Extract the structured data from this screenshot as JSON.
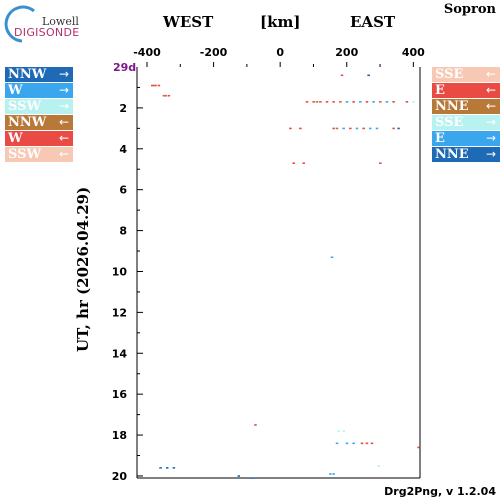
{
  "header": {
    "logo_top": "Lowell",
    "logo_bottom": "DIGISONDE",
    "station": "Sopron",
    "west_label": "WEST",
    "unit_label": "[km]",
    "east_label": "EAST",
    "day_label": "29d"
  },
  "footer": {
    "version": "Drg2Png, v 1.2.04"
  },
  "legend": {
    "left": [
      {
        "dir": "NNW",
        "arrow": "→",
        "color": "#1e6ab4"
      },
      {
        "dir": "W",
        "arrow": "→",
        "color": "#3aa6ee"
      },
      {
        "dir": "SSW",
        "arrow": "→",
        "color": "#b8f2f0"
      },
      {
        "dir": "NNW",
        "arrow": "←",
        "color": "#b87838"
      },
      {
        "dir": "W",
        "arrow": "←",
        "color": "#ea4a44"
      },
      {
        "dir": "SSW",
        "arrow": "←",
        "color": "#f7c8b4"
      }
    ],
    "right": [
      {
        "dir": "SSE",
        "arrow": "←",
        "color": "#f7c8b4"
      },
      {
        "dir": "E",
        "arrow": "←",
        "color": "#ea4a44"
      },
      {
        "dir": "NNE",
        "arrow": "←",
        "color": "#b87838"
      },
      {
        "dir": "SSE",
        "arrow": "→",
        "color": "#b8f2f0"
      },
      {
        "dir": "E",
        "arrow": "→",
        "color": "#3aa6ee"
      },
      {
        "dir": "NNE",
        "arrow": "→",
        "color": "#1e6ab4"
      }
    ]
  },
  "chart_data": {
    "type": "scatter",
    "title": "",
    "xlabel": "[km]",
    "ylabel": "UT, hr (2026.04.29)",
    "xlim": [
      -430,
      420
    ],
    "ylim": [
      0,
      20.1
    ],
    "x_ticks": [
      -400,
      -200,
      0,
      200,
      400
    ],
    "x_tick_labels": [
      "-400",
      "-200",
      "0",
      "200",
      "400"
    ],
    "y_ticks": [
      2,
      4,
      6,
      8,
      10,
      12,
      14,
      16,
      18,
      20
    ],
    "y_tick_labels": [
      "2",
      "4",
      "6",
      "8",
      "10",
      "12",
      "14",
      "16",
      "18",
      "20"
    ],
    "series": [
      {
        "color": "#ea4a44",
        "points": [
          [
            -385,
            0.9
          ],
          [
            -375,
            0.9
          ],
          [
            -365,
            0.9
          ],
          [
            -345,
            1.4
          ],
          [
            -335,
            1.4
          ],
          [
            185,
            0.4
          ],
          [
            265,
            0.4
          ],
          [
            80,
            1.7
          ],
          [
            100,
            1.7
          ],
          [
            120,
            1.7
          ],
          [
            140,
            1.7
          ],
          [
            160,
            1.7
          ],
          [
            180,
            1.7
          ],
          [
            220,
            1.7
          ],
          [
            260,
            1.7
          ],
          [
            300,
            1.7
          ],
          [
            340,
            1.7
          ],
          [
            380,
            1.7
          ],
          [
            30,
            3.0
          ],
          [
            60,
            3.0
          ],
          [
            160,
            3.0
          ],
          [
            210,
            3.0
          ],
          [
            250,
            3.0
          ],
          [
            340,
            3.0
          ],
          [
            40,
            4.7
          ],
          [
            70,
            4.7
          ],
          [
            300,
            4.7
          ],
          [
            -75,
            17.5
          ],
          [
            245,
            18.4
          ],
          [
            260,
            18.4
          ],
          [
            275,
            18.4
          ],
          [
            415,
            18.6
          ]
        ]
      },
      {
        "color": "#3aa6ee",
        "points": [
          [
            200,
            1.7
          ],
          [
            240,
            1.7
          ],
          [
            280,
            1.7
          ],
          [
            320,
            1.7
          ],
          [
            190,
            3.0
          ],
          [
            230,
            3.0
          ],
          [
            270,
            3.0
          ],
          [
            290,
            3.0
          ],
          [
            155,
            9.3
          ],
          [
            170,
            18.4
          ],
          [
            200,
            18.4
          ],
          [
            220,
            18.4
          ],
          [
            150,
            19.9
          ],
          [
            160,
            19.9
          ]
        ]
      },
      {
        "color": "#1e6ab4",
        "points": [
          [
            -360,
            19.6
          ],
          [
            -340,
            19.6
          ],
          [
            -320,
            19.6
          ],
          [
            265,
            0.4
          ],
          [
            355,
            3.0
          ],
          [
            -125,
            20.0
          ],
          [
            -85,
            20.1
          ]
        ]
      },
      {
        "color": "#b8f2f0",
        "points": [
          [
            175,
            17.8
          ],
          [
            190,
            17.8
          ],
          [
            295,
            19.5
          ],
          [
            400,
            1.7
          ]
        ]
      },
      {
        "color": "#b87838",
        "points": [
          [
            -380,
            0.9
          ],
          [
            -350,
            1.4
          ],
          [
            110,
            1.7
          ],
          [
            170,
            3.0
          ]
        ]
      }
    ]
  }
}
